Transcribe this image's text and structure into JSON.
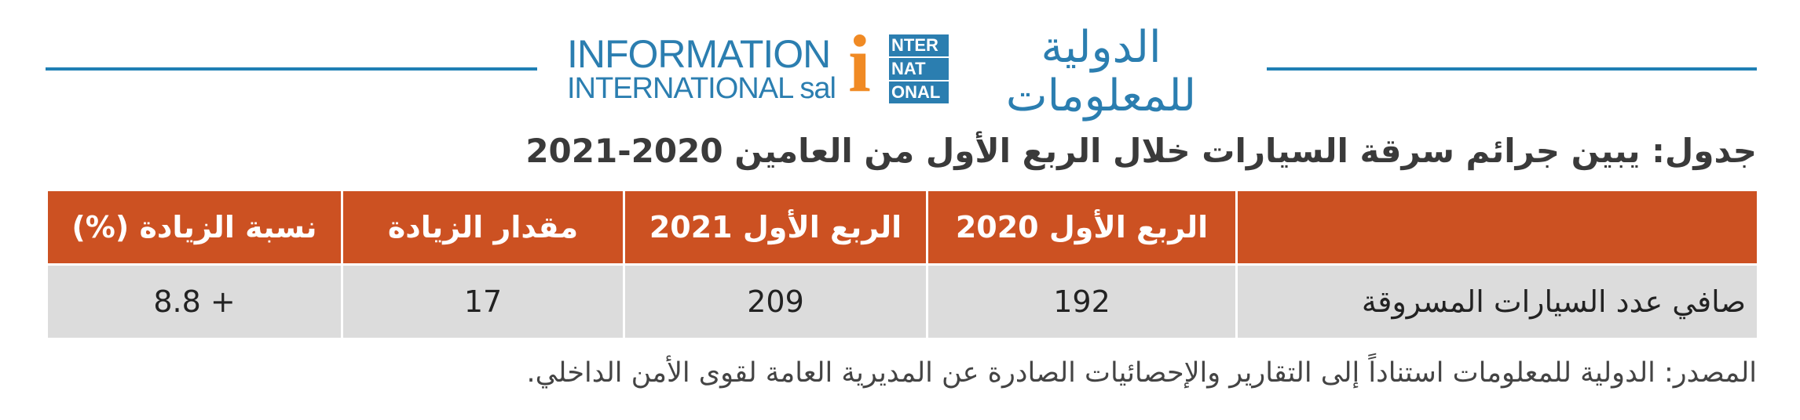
{
  "logo": {
    "english_line_1": "INFORMATION",
    "english_line_2": "INTERNATIONAL sal",
    "icon_letter": "i",
    "icon_lines": [
      "NTER",
      "NAT",
      "ONAL"
    ],
    "arabic": "الدولية للمعلومات"
  },
  "title": "جدول: يبين جرائم سرقة السيارات خلال الربع الأول من العامين 2020-2021",
  "table": {
    "headers": [
      "الربع الأول 2020",
      "الربع الأول 2021",
      "مقدار الزيادة",
      "نسبة الزيادة (%)"
    ],
    "rows": [
      [
        "صافي عدد السيارات المسروقة",
        192,
        209,
        17,
        "+ 8.8"
      ]
    ]
  },
  "source": "المصدر: الدولية للمعلومات استناداً إلى التقارير والإحصائيات الصادرة عن المديرية العامة لقوى الأمن الداخلي."
}
